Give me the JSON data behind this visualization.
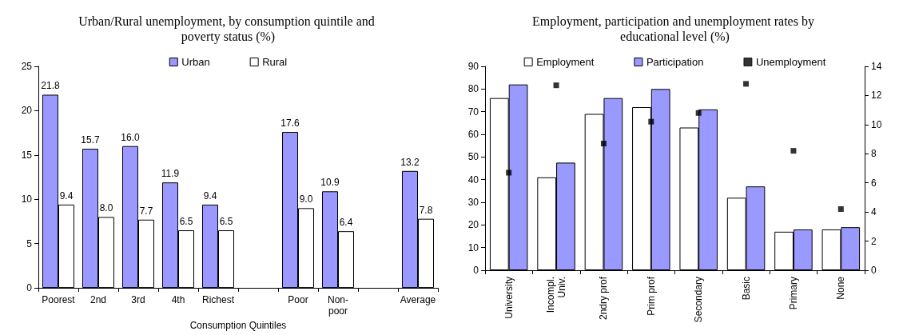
{
  "chart_data": [
    {
      "type": "bar",
      "title": "Urban/Rural unemployment, by consumption quintile and poverty status (%)",
      "xlabel": "Consumption Quintiles",
      "categories": [
        "Poorest",
        "2nd",
        "3rd",
        "4th",
        "Richest",
        null,
        "Poor",
        "Non-\npoor",
        null,
        "Average"
      ],
      "series": [
        {
          "name": "Urban",
          "color": "#9999ff",
          "values": [
            21.8,
            15.7,
            16.0,
            11.9,
            9.4,
            null,
            17.6,
            10.9,
            null,
            13.2
          ],
          "value_labels": [
            "21.8",
            "15.7",
            "16.0",
            "11.9",
            "9.4",
            null,
            "17.6",
            "10.9",
            null,
            "13.2"
          ]
        },
        {
          "name": "Rural",
          "color": "#ffffff",
          "values": [
            9.4,
            8.0,
            7.7,
            6.5,
            6.5,
            null,
            9.0,
            6.4,
            null,
            7.8
          ],
          "value_labels": [
            "9.4",
            "8.0",
            "7.7",
            "6.5",
            "6.5",
            null,
            "9.0",
            "6.4",
            null,
            "7.8"
          ]
        }
      ],
      "ylim": [
        0,
        25
      ],
      "yticks": [
        0,
        5,
        10,
        15,
        20,
        25
      ],
      "grid": false,
      "legend": "top"
    },
    {
      "type": "bar",
      "title": "Employment, participation and unemployment rates by educational level (%)",
      "categories": [
        "University",
        "Incompl.\nUniv.",
        "2ndry prof",
        "Prim prof",
        "Secondary",
        "Basic",
        "Primary",
        "None"
      ],
      "series": [
        {
          "name": "Employment",
          "color": "#ffffff",
          "values": [
            76,
            41,
            69,
            72,
            63,
            32,
            17,
            18
          ]
        },
        {
          "name": "Participation",
          "color": "#9999ff",
          "values": [
            82,
            47.5,
            76,
            80,
            71,
            37,
            18,
            19
          ]
        },
        {
          "name": "Unemployment",
          "type": "scatter",
          "axis": "y2",
          "marker": "square",
          "color": "#000000",
          "values": [
            6.7,
            12.7,
            8.7,
            10.2,
            10.8,
            12.8,
            8.2,
            4.2
          ]
        }
      ],
      "ylim": [
        0,
        90
      ],
      "yticks": [
        0,
        10,
        20,
        30,
        40,
        50,
        60,
        70,
        80,
        90
      ],
      "y2lim": [
        0,
        14
      ],
      "y2ticks": [
        0,
        2,
        4,
        6,
        8,
        10,
        12,
        14
      ],
      "grid": false,
      "legend": "top"
    }
  ]
}
